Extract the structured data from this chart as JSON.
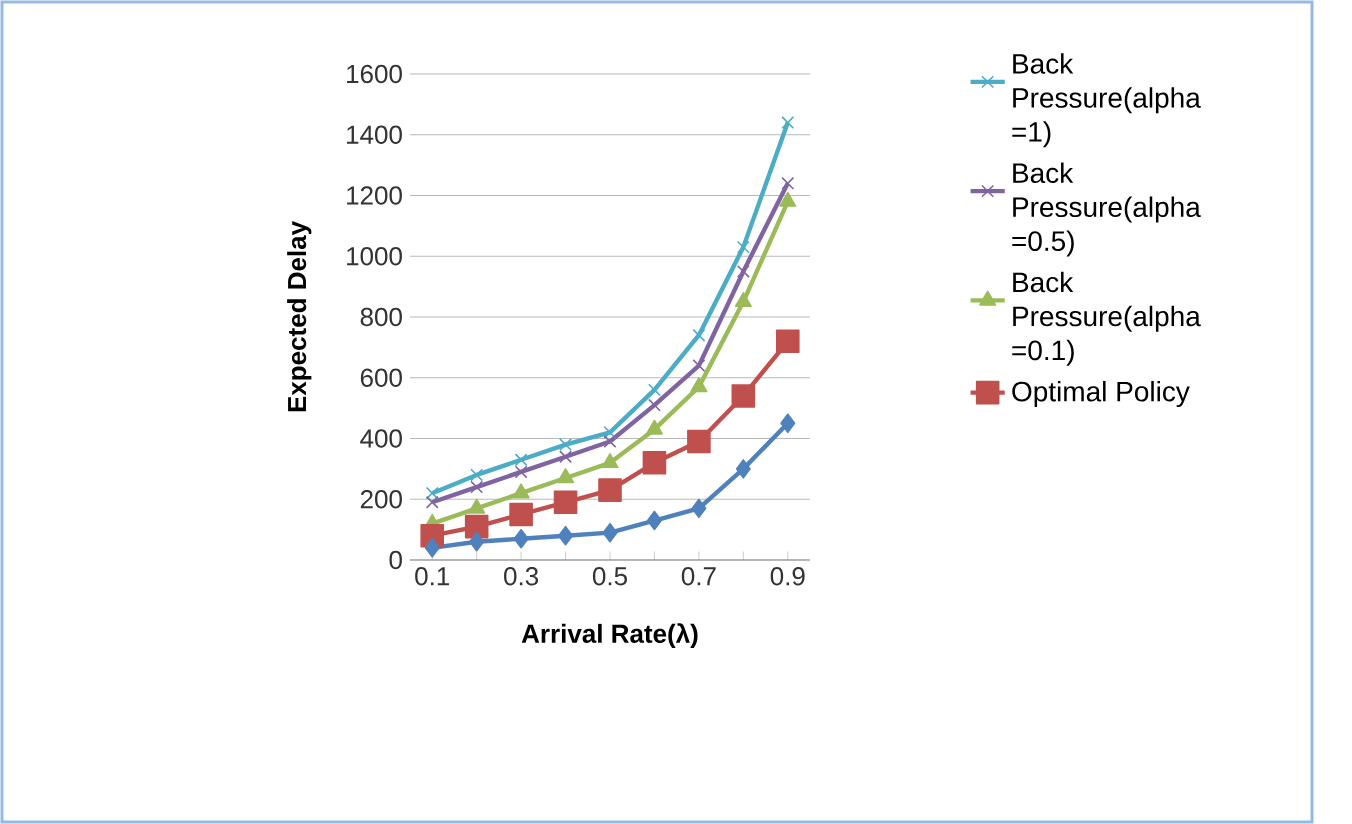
{
  "chart_data": {
    "type": "line",
    "xlabel": "Arrival Rate(λ)",
    "ylabel": "Expected Delay",
    "categories": [
      "0.1",
      null,
      "0.3",
      null,
      "0.5",
      null,
      "0.7",
      null,
      "0.9"
    ],
    "series": [
      {
        "name": "Back Pressure(alpha =1)",
        "color": "#4bacc6",
        "marker": "cross",
        "values": [
          220,
          280,
          330,
          380,
          420,
          560,
          740,
          1030,
          1440
        ]
      },
      {
        "name": "Back Pressure(alpha =0.5)",
        "color": "#8064a2",
        "marker": "cross",
        "values": [
          190,
          240,
          290,
          340,
          390,
          510,
          640,
          950,
          1240
        ]
      },
      {
        "name": "Back Pressure(alpha =0.1)",
        "color": "#9bbb59",
        "marker": "triangle",
        "values": [
          120,
          170,
          220,
          270,
          320,
          430,
          570,
          850,
          1180
        ]
      },
      {
        "name": "Optimal Policy",
        "color": "#c0504d",
        "marker": "square",
        "values": [
          80,
          110,
          150,
          190,
          230,
          320,
          390,
          540,
          720
        ]
      },
      {
        "color": "#4f81bd",
        "marker": "diamond",
        "values": [
          40,
          60,
          70,
          80,
          90,
          130,
          170,
          300,
          450
        ]
      }
    ],
    "ylim": [
      0,
      1600
    ],
    "yticks": [
      0,
      200,
      400,
      600,
      800,
      1000,
      1200,
      1400,
      1600
    ],
    "grid": "y",
    "legend": "right"
  }
}
